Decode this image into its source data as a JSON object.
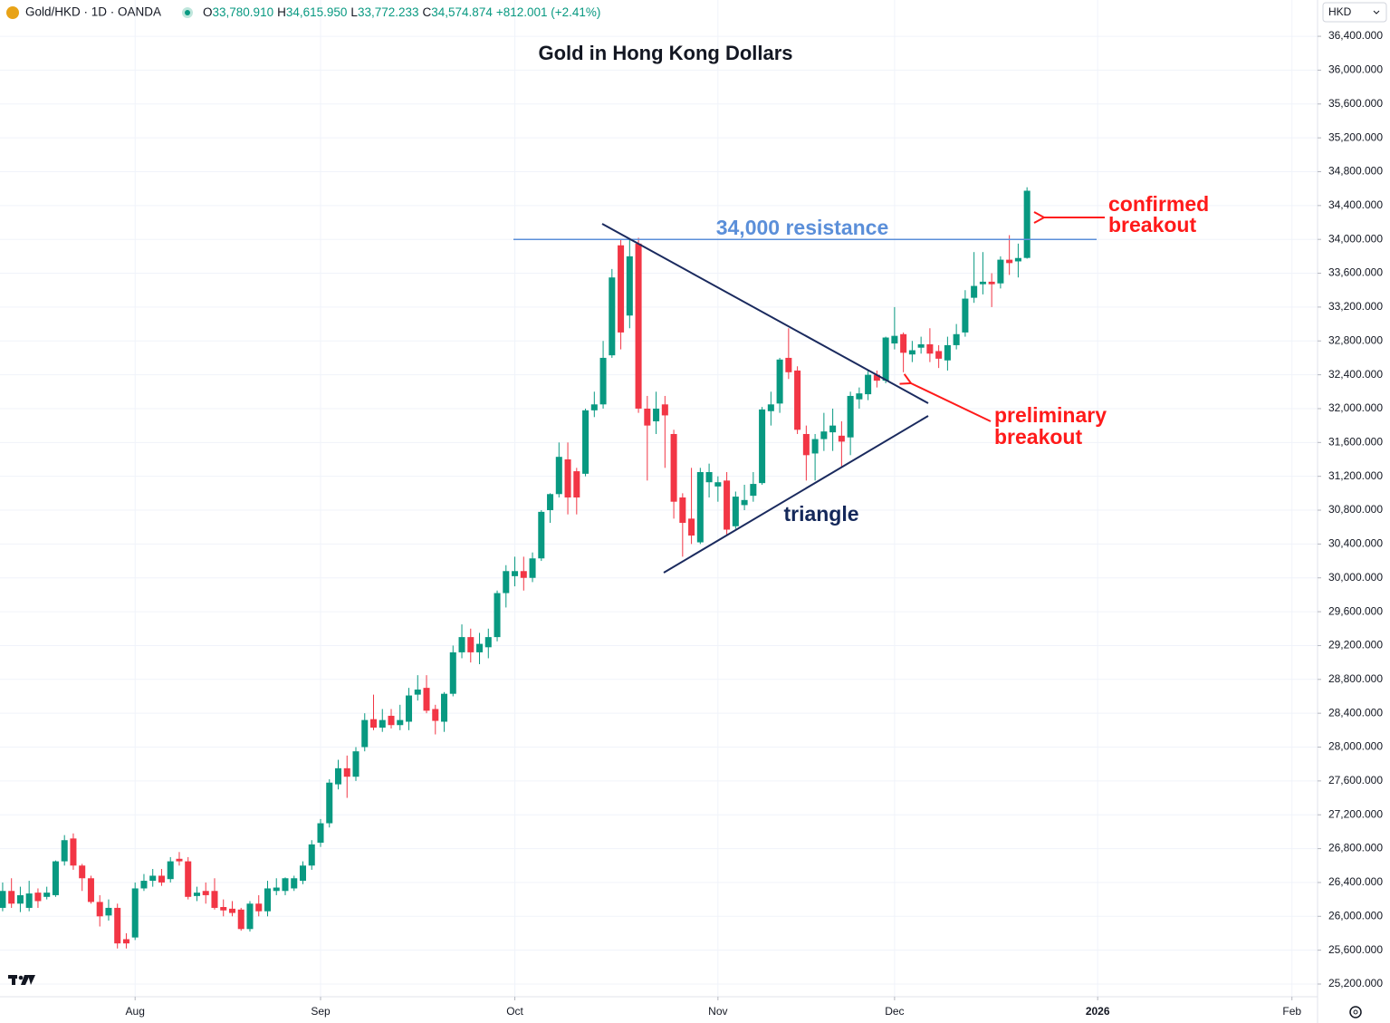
{
  "header": {
    "symbol": "Gold/HKD · 1D · OANDA",
    "ohlc": [
      {
        "key": "O",
        "value": "33,780.910"
      },
      {
        "key": "H",
        "value": "34,615.950"
      },
      {
        "key": "L",
        "value": "33,772.233"
      },
      {
        "key": "C",
        "value": "34,574.874"
      }
    ],
    "change": "+812.001 (+2.41%)"
  },
  "currency": "HKD",
  "chart_data": {
    "type": "candlestick",
    "title": "Gold in Hong Kong Dollars",
    "up_color": "#089981",
    "down_color": "#f23645",
    "grid": true,
    "xlim": [
      -0.3,
      148.9
    ],
    "xticks": [
      {
        "value": 15,
        "label": "Aug"
      },
      {
        "value": 36,
        "label": "Sep"
      },
      {
        "value": 58,
        "label": "Oct"
      },
      {
        "value": 81,
        "label": "Nov"
      },
      {
        "value": 101,
        "label": "Dec"
      },
      {
        "value": 124,
        "label": "2026"
      },
      {
        "value": 146,
        "label": "Feb"
      }
    ],
    "ylim": [
      25050,
      36829
    ],
    "yticks": [
      {
        "value": 25200,
        "label": "25,200.000"
      },
      {
        "value": 25600,
        "label": "25,600.000"
      },
      {
        "value": 26000,
        "label": "26,000.000"
      },
      {
        "value": 26400,
        "label": "26,400.000"
      },
      {
        "value": 26800,
        "label": "26,800.000"
      },
      {
        "value": 27200,
        "label": "27,200.000"
      },
      {
        "value": 27600,
        "label": "27,600.000"
      },
      {
        "value": 28000,
        "label": "28,000.000"
      },
      {
        "value": 28400,
        "label": "28,400.000"
      },
      {
        "value": 28800,
        "label": "28,800.000"
      },
      {
        "value": 29200,
        "label": "29,200.000"
      },
      {
        "value": 29600,
        "label": "29,600.000"
      },
      {
        "value": 30000,
        "label": "30,000.000"
      },
      {
        "value": 30400,
        "label": "30,400.000"
      },
      {
        "value": 30800,
        "label": "30,800.000"
      },
      {
        "value": 31200,
        "label": "31,200.000"
      },
      {
        "value": 31600,
        "label": "31,600.000"
      },
      {
        "value": 32000,
        "label": "32,000.000"
      },
      {
        "value": 32400,
        "label": "32,400.000"
      },
      {
        "value": 32800,
        "label": "32,800.000"
      },
      {
        "value": 33200,
        "label": "33,200.000"
      },
      {
        "value": 33600,
        "label": "33,600.000"
      },
      {
        "value": 34000,
        "label": "34,000.000"
      },
      {
        "value": 34400,
        "label": "34,400.000"
      },
      {
        "value": 34800,
        "label": "34,800.000"
      },
      {
        "value": 35200,
        "label": "35,200.000"
      },
      {
        "value": 35600,
        "label": "35,600.000"
      },
      {
        "value": 36000,
        "label": "36,000.000"
      },
      {
        "value": 36400,
        "label": "36,400.000"
      }
    ],
    "open": [
      26100,
      26300,
      26150,
      26100,
      26280,
      26230,
      26250,
      26650,
      26920,
      26600,
      26450,
      26170,
      26010,
      26100,
      25730,
      25750,
      26330,
      26420,
      26480,
      26440,
      26680,
      26650,
      26240,
      26300,
      26300,
      26110,
      26090,
      26080,
      25850,
      26150,
      26060,
      26300,
      26300,
      26330,
      26420,
      26600,
      26870,
      27100,
      27560,
      27750,
      27650,
      28000,
      28330,
      28230,
      28370,
      28260,
      28300,
      28620,
      28700,
      28450,
      28300,
      28630,
      29120,
      29300,
      29120,
      29180,
      29300,
      29820,
      30020,
      30080,
      30000,
      30230,
      30800,
      30990,
      31400,
      31260,
      31230,
      31980,
      32050,
      32630,
      33930,
      33100,
      33950,
      32000,
      31850,
      32050,
      31700,
      30950,
      30700,
      30420,
      31130,
      31080,
      31150,
      30610,
      30860,
      30970,
      31120,
      31970,
      32060,
      32600,
      32450,
      31700,
      31470,
      31640,
      31720,
      31680,
      31660,
      32110,
      32170,
      32400,
      32330,
      32770,
      32880,
      32640,
      32720,
      32760,
      32680,
      32570,
      32750,
      32900,
      33310,
      33470,
      33500,
      33480,
      33760,
      33740,
      33780.91
    ],
    "high": [
      26400,
      26450,
      26350,
      26420,
      26330,
      26350,
      26660,
      26960,
      26980,
      26620,
      26480,
      26250,
      26200,
      26150,
      25800,
      26400,
      26500,
      26560,
      26560,
      26700,
      26760,
      26700,
      26350,
      26400,
      26450,
      26200,
      26180,
      26100,
      26180,
      26250,
      26420,
      26450,
      26460,
      26480,
      26650,
      26900,
      27150,
      27620,
      27850,
      27900,
      28000,
      28400,
      28620,
      28450,
      28450,
      28500,
      28700,
      28850,
      28850,
      28500,
      28650,
      29200,
      29450,
      29400,
      29350,
      29400,
      29850,
      30150,
      30250,
      30250,
      30300,
      30800,
      31000,
      31600,
      31600,
      31300,
      32000,
      32200,
      32800,
      33650,
      34000,
      34000,
      34020,
      32150,
      32200,
      32150,
      31750,
      31000,
      31300,
      31300,
      31350,
      31200,
      31250,
      31020,
      31100,
      31250,
      32020,
      32200,
      32600,
      32950,
      32500,
      31800,
      31700,
      31950,
      32000,
      31850,
      32200,
      32250,
      32450,
      32450,
      32850,
      33200,
      32900,
      32800,
      32850,
      32950,
      32750,
      32850,
      33000,
      33400,
      33850,
      33850,
      33600,
      33800,
      34050,
      33950,
      34615.95
    ],
    "low": [
      26060,
      26100,
      26050,
      26060,
      26100,
      26200,
      26230,
      26600,
      26550,
      26300,
      26150,
      25880,
      25950,
      25620,
      25620,
      25720,
      26300,
      26350,
      26360,
      26400,
      26600,
      26200,
      26180,
      26150,
      26080,
      26000,
      26000,
      25830,
      25820,
      26000,
      26000,
      26250,
      26250,
      26300,
      26380,
      26550,
      26820,
      27050,
      27500,
      27400,
      27600,
      27950,
      28200,
      28180,
      28220,
      28200,
      28200,
      28550,
      28400,
      28150,
      28180,
      28600,
      29050,
      29000,
      28980,
      29050,
      29250,
      29650,
      29900,
      29850,
      29950,
      30200,
      30650,
      30950,
      30750,
      30750,
      31200,
      31900,
      32000,
      32600,
      32700,
      32950,
      31950,
      31150,
      31700,
      31300,
      30700,
      30250,
      30400,
      30400,
      30950,
      30900,
      30500,
      30580,
      30800,
      30900,
      31100,
      31800,
      31950,
      32350,
      31700,
      31150,
      31150,
      31500,
      31500,
      31300,
      31450,
      32000,
      32100,
      32250,
      32300,
      32700,
      32430,
      32550,
      32650,
      32550,
      32480,
      32450,
      32700,
      32850,
      33250,
      33350,
      33200,
      33420,
      33580,
      33550,
      33772.233
    ],
    "close": [
      26300,
      26150,
      26250,
      26270,
      26180,
      26280,
      26650,
      26900,
      26600,
      26450,
      26170,
      26000,
      26100,
      25680,
      25680,
      26330,
      26420,
      26480,
      26400,
      26650,
      26650,
      26230,
      26280,
      26250,
      26100,
      26070,
      26040,
      25850,
      26150,
      26060,
      26330,
      26340,
      26450,
      26450,
      26600,
      26850,
      27100,
      27580,
      27750,
      27650,
      27950,
      28320,
      28230,
      28320,
      28260,
      28320,
      28610,
      28680,
      28430,
      28310,
      28630,
      29120,
      29300,
      29120,
      29220,
      29300,
      29820,
      30080,
      30080,
      30000,
      30230,
      30780,
      30990,
      31430,
      30950,
      30950,
      31980,
      32050,
      32600,
      33550,
      32900,
      33800,
      32000,
      31800,
      32000,
      31920,
      30900,
      30650,
      30500,
      31250,
      31250,
      31130,
      30570,
      30960,
      30920,
      31110,
      31990,
      32050,
      32580,
      32430,
      31750,
      31450,
      31640,
      31730,
      31800,
      31610,
      32150,
      32180,
      32400,
      32330,
      32840,
      32860,
      32660,
      32690,
      32760,
      32650,
      32590,
      32750,
      32880,
      33300,
      33450,
      33500,
      33470,
      33760,
      33720,
      33780,
      34574.874
    ],
    "hlines": [
      {
        "value": 34000,
        "label": "34,000 resistance",
        "color": "#5b8fd9"
      }
    ],
    "annotations": [
      {
        "lines": [
          "confirmed",
          "breakout"
        ]
      },
      {
        "lines": [
          "preliminary",
          "breakout"
        ]
      },
      {
        "lines": [
          "triangle"
        ]
      }
    ]
  }
}
